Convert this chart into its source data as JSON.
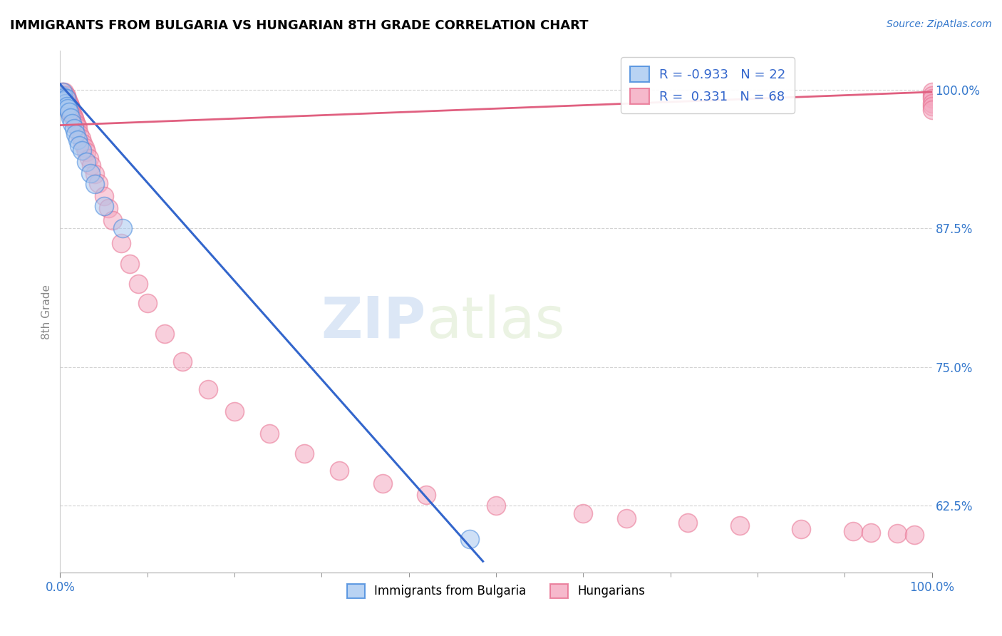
{
  "title": "IMMIGRANTS FROM BULGARIA VS HUNGARIAN 8TH GRADE CORRELATION CHART",
  "source": "Source: ZipAtlas.com",
  "ylabel": "8th Grade",
  "xlim": [
    0.0,
    1.0
  ],
  "ylim": [
    0.565,
    1.035
  ],
  "yticks": [
    0.625,
    0.75,
    0.875,
    1.0
  ],
  "ytick_labels": [
    "62.5%",
    "75.0%",
    "87.5%",
    "100.0%"
  ],
  "xtick_labels": [
    "0.0%",
    "100.0%"
  ],
  "blue_fill": "#a8c8f0",
  "pink_fill": "#f4a8c0",
  "blue_edge": "#4488dd",
  "pink_edge": "#e87090",
  "blue_line": "#3366cc",
  "pink_line": "#e06080",
  "r_blue": -0.933,
  "n_blue": 22,
  "r_pink": 0.331,
  "n_pink": 68,
  "legend_label_blue": "Immigrants from Bulgaria",
  "legend_label_pink": "Hungarians",
  "watermark_zip": "ZIP",
  "watermark_atlas": "atlas",
  "blue_x": [
    0.002,
    0.003,
    0.004,
    0.005,
    0.006,
    0.007,
    0.008,
    0.009,
    0.01,
    0.012,
    0.014,
    0.016,
    0.018,
    0.02,
    0.022,
    0.025,
    0.03,
    0.035,
    0.04,
    0.05,
    0.072,
    0.47
  ],
  "blue_y": [
    0.995,
    0.998,
    0.993,
    0.99,
    0.988,
    0.992,
    0.985,
    0.983,
    0.98,
    0.975,
    0.97,
    0.965,
    0.96,
    0.955,
    0.95,
    0.945,
    0.935,
    0.925,
    0.915,
    0.895,
    0.875,
    0.595
  ],
  "pink_x": [
    0.002,
    0.003,
    0.004,
    0.005,
    0.005,
    0.006,
    0.006,
    0.007,
    0.007,
    0.008,
    0.008,
    0.009,
    0.009,
    0.01,
    0.01,
    0.011,
    0.011,
    0.012,
    0.012,
    0.013,
    0.014,
    0.015,
    0.016,
    0.017,
    0.018,
    0.019,
    0.02,
    0.022,
    0.024,
    0.026,
    0.028,
    0.03,
    0.033,
    0.036,
    0.04,
    0.044,
    0.05,
    0.055,
    0.06,
    0.07,
    0.08,
    0.09,
    0.1,
    0.12,
    0.14,
    0.17,
    0.2,
    0.24,
    0.28,
    0.32,
    0.37,
    0.42,
    0.5,
    0.6,
    0.65,
    0.72,
    0.78,
    0.85,
    0.91,
    0.93,
    0.96,
    0.98,
    1.0,
    1.0,
    1.0,
    1.0,
    1.0,
    1.0
  ],
  "pink_y": [
    0.998,
    0.995,
    0.992,
    0.998,
    0.993,
    0.995,
    0.99,
    0.995,
    0.988,
    0.992,
    0.986,
    0.99,
    0.984,
    0.988,
    0.982,
    0.986,
    0.98,
    0.984,
    0.978,
    0.982,
    0.978,
    0.976,
    0.974,
    0.972,
    0.97,
    0.968,
    0.966,
    0.96,
    0.956,
    0.952,
    0.948,
    0.944,
    0.938,
    0.932,
    0.924,
    0.916,
    0.904,
    0.893,
    0.882,
    0.862,
    0.843,
    0.825,
    0.808,
    0.78,
    0.755,
    0.73,
    0.71,
    0.69,
    0.672,
    0.657,
    0.645,
    0.635,
    0.625,
    0.618,
    0.614,
    0.61,
    0.607,
    0.604,
    0.602,
    0.601,
    0.6,
    0.599,
    0.998,
    0.995,
    0.992,
    0.988,
    0.985,
    0.982
  ],
  "blue_line_x0": 0.0,
  "blue_line_y0": 1.005,
  "blue_line_x1": 0.485,
  "blue_line_y1": 0.575,
  "pink_line_x0": 0.0,
  "pink_line_y0": 0.968,
  "pink_line_x1": 1.0,
  "pink_line_y1": 0.998
}
